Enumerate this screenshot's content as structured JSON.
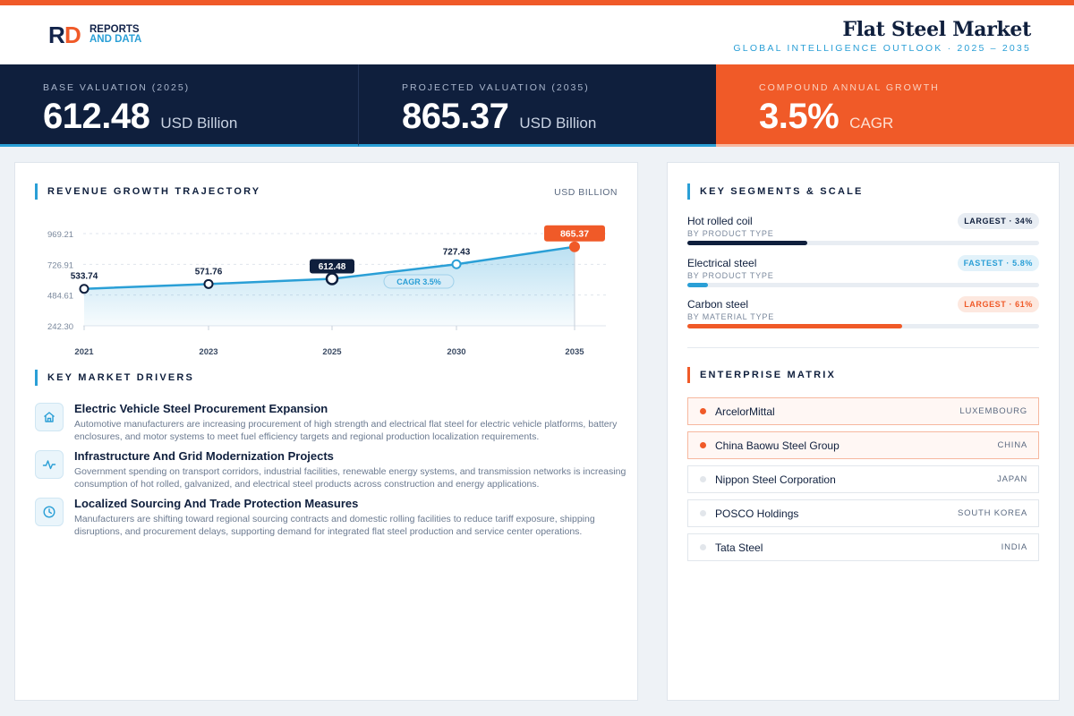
{
  "header": {
    "logo_line1": "REPORTS",
    "logo_line2": "AND DATA",
    "title": "Flat Steel Market",
    "subtitle": "GLOBAL INTELLIGENCE OUTLOOK  ·  2025 – 2035"
  },
  "kpis": [
    {
      "label": "BASE VALUATION (2025)",
      "value": "612.48",
      "unit": "USD Billion"
    },
    {
      "label": "PROJECTED VALUATION (2035)",
      "value": "865.37",
      "unit": "USD Billion"
    },
    {
      "label": "COMPOUND ANNUAL GROWTH",
      "value": "3.5%",
      "unit": "CAGR"
    }
  ],
  "trajectory": {
    "title": "REVENUE GROWTH TRAJECTORY",
    "unit": "USD BILLION",
    "cagr_pill": "CAGR 3.5%"
  },
  "chart_data": {
    "type": "line",
    "categories": [
      "2021",
      "2023",
      "2025",
      "2030",
      "2035"
    ],
    "values": [
      533.74,
      571.76,
      612.48,
      727.43,
      865.37
    ],
    "value_labels": [
      "533.74",
      "571.76",
      "612.48",
      "727.43",
      "865.37"
    ],
    "y_ticks": [
      "969.21",
      "726.91",
      "484.61",
      "242.30"
    ],
    "ylim": [
      242.3,
      969.21
    ],
    "highlight_index": 2,
    "final_index": 4,
    "grid": true,
    "colors": {
      "line": "#2a9fd6",
      "highlight": "#0f1f3d",
      "final": "#f05a28"
    }
  },
  "drivers": {
    "title": "KEY MARKET DRIVERS",
    "items": [
      {
        "icon": "home-icon",
        "title": "Electric Vehicle Steel Procurement Expansion",
        "desc": "Automotive manufacturers are increasing procurement of high strength and electrical flat steel for electric vehicle platforms, battery enclosures, and motor systems to meet fuel efficiency targets and regional production localization requirements."
      },
      {
        "icon": "pulse-icon",
        "title": "Infrastructure And Grid Modernization Projects",
        "desc": "Government spending on transport corridors, industrial facilities, renewable energy systems, and transmission networks is increasing consumption of hot rolled, galvanized, and electrical steel products across construction and energy applications."
      },
      {
        "icon": "clock-icon",
        "title": "Localized Sourcing And Trade Protection Measures",
        "desc": "Manufacturers are shifting toward regional sourcing contracts and domestic rolling facilities to reduce tariff exposure, shipping disruptions, and procurement delays, supporting demand for integrated flat steel production and service center operations."
      }
    ]
  },
  "segments": {
    "title": "KEY SEGMENTS & SCALE",
    "items": [
      {
        "name": "Hot rolled coil",
        "sub": "BY PRODUCT TYPE",
        "badge": "LARGEST · 34%",
        "share": 0.34,
        "color": "#0f1f3d"
      },
      {
        "name": "Electrical steel",
        "sub": "BY PRODUCT TYPE",
        "badge": "FASTEST · 5.8%",
        "share": 0.058,
        "color": "#2a9fd6"
      },
      {
        "name": "Carbon steel",
        "sub": "BY MATERIAL TYPE",
        "badge": "LARGEST · 61%",
        "share": 0.61,
        "color": "#f05a28"
      }
    ]
  },
  "enterprise": {
    "title": "ENTERPRISE MATRIX",
    "items": [
      {
        "name": "ArcelorMittal",
        "country": "LUXEMBOURG",
        "highlight": true
      },
      {
        "name": "China Baowu Steel Group",
        "country": "CHINA",
        "highlight": true
      },
      {
        "name": "Nippon Steel Corporation",
        "country": "JAPAN",
        "highlight": false
      },
      {
        "name": "POSCO Holdings",
        "country": "SOUTH KOREA",
        "highlight": false
      },
      {
        "name": "Tata Steel",
        "country": "INDIA",
        "highlight": false
      }
    ]
  }
}
